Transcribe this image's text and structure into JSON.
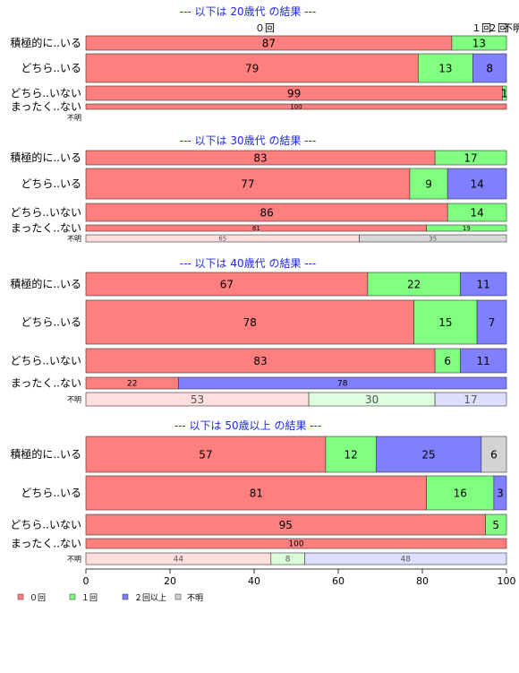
{
  "chart_data": {
    "type": "bar",
    "orientation": "horizontal",
    "stacked": true,
    "xlim": [
      0,
      100
    ],
    "xticks": [
      0,
      20,
      40,
      60,
      80,
      100
    ],
    "grid": false,
    "legend_position": "bottom-left",
    "legend": [
      {
        "label": "０回",
        "color": "#ff7f7f"
      },
      {
        "label": "１回",
        "color": "#80ff80"
      },
      {
        "label": "２回以上",
        "color": "#8080ff"
      },
      {
        "label": "不明",
        "color": "#d3d3d3"
      }
    ],
    "top_legend_labels": [
      "０回",
      "１回",
      "２回",
      "不明"
    ],
    "panels": [
      {
        "title": "--- 以下は 20歳代 の結果 ---",
        "rows": [
          {
            "label": "積極的に..いる",
            "values": [
              87,
              13,
              0,
              0
            ]
          },
          {
            "label": "どちら..いる",
            "values": [
              79,
              13,
              8,
              0
            ]
          },
          {
            "label": "どちら..いない",
            "values": [
              99,
              1,
              0,
              0
            ]
          },
          {
            "label": "まったく..ない",
            "values": [
              100,
              0,
              0,
              0
            ]
          },
          {
            "label": "不明",
            "values": [],
            "value_labels": []
          }
        ]
      },
      {
        "title": "--- 以下は 30歳代 の結果 ---",
        "rows": [
          {
            "label": "積極的に..いる",
            "values": [
              83,
              17,
              0,
              0
            ]
          },
          {
            "label": "どちら..いる",
            "values": [
              77,
              9,
              14,
              0
            ]
          },
          {
            "label": "どちら..いない",
            "values": [
              86,
              14,
              0,
              0
            ]
          },
          {
            "label": "まったく..ない",
            "values": [
              81,
              19,
              0,
              0
            ]
          },
          {
            "label": "不明",
            "values": [
              65,
              0,
              0,
              35
            ]
          }
        ]
      },
      {
        "title": "--- 以下は 40歳代 の結果 ---",
        "rows": [
          {
            "label": "積極的に..いる",
            "values": [
              67,
              22,
              11,
              0
            ]
          },
          {
            "label": "どちら..いる",
            "values": [
              78,
              15,
              7,
              0
            ]
          },
          {
            "label": "どちら..いない",
            "values": [
              83,
              6,
              11,
              0
            ]
          },
          {
            "label": "まったく..ない",
            "values": [
              22,
              0,
              78,
              0
            ]
          },
          {
            "label": "不明",
            "values": [
              53,
              30,
              17,
              0
            ]
          }
        ]
      },
      {
        "title": "--- 以下は 50歳以上 の結果 ---",
        "rows": [
          {
            "label": "積極的に..いる",
            "values": [
              57,
              12,
              25,
              6
            ]
          },
          {
            "label": "どちら..いる",
            "values": [
              81,
              16,
              3,
              0
            ]
          },
          {
            "label": "どちら..いない",
            "values": [
              95,
              5,
              0,
              0
            ]
          },
          {
            "label": "まったく..ない",
            "values": [
              100,
              0,
              0,
              0
            ]
          },
          {
            "label": "不明",
            "values": [
              44,
              8,
              48,
              0
            ]
          }
        ]
      }
    ]
  }
}
